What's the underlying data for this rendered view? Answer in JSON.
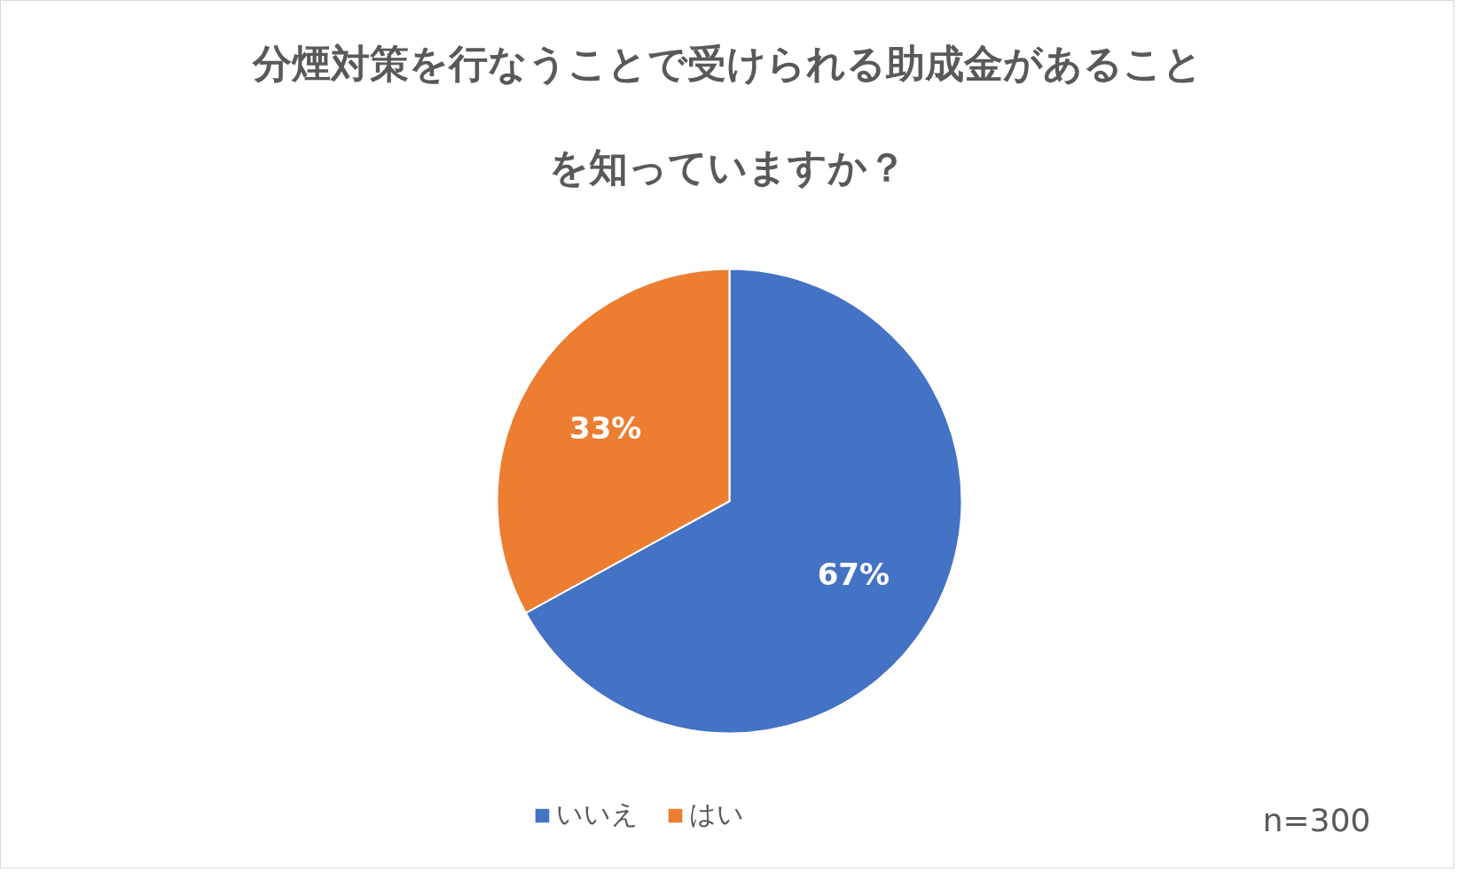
{
  "chart_data": {
    "type": "pie",
    "title": "分煙対策を行なうことで受けられる助成金があることを知っていますか？",
    "categories": [
      "いいえ",
      "はい"
    ],
    "values": [
      67,
      33
    ],
    "colors": [
      "#4472c4",
      "#ed7d31"
    ],
    "value_labels": [
      "67%",
      "33%"
    ],
    "legend": "bottom",
    "annotations": [
      "n=300"
    ]
  }
}
